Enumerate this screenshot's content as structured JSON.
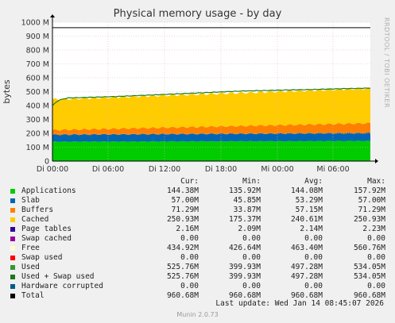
{
  "chart_data": {
    "type": "area",
    "title": "Physical memory usage - by day",
    "ylabel": "bytes",
    "side_text": "RRDTOOL / TOBI OETIKER",
    "y_ticks": [
      "0",
      "100 M",
      "200 M",
      "300 M",
      "400 M",
      "500 M",
      "600 M",
      "700 M",
      "800 M",
      "900 M",
      "1000 M"
    ],
    "ylim": [
      0,
      1000
    ],
    "x_ticks": [
      "Di 00:00",
      "Di 06:00",
      "Di 12:00",
      "Di 18:00",
      "Mi 00:00",
      "Mi 06:00"
    ],
    "grid": true,
    "series_stacked": [
      {
        "name": "Applications",
        "color": "#00cc00",
        "start": 140,
        "end": 145
      },
      {
        "name": "Slab",
        "color": "#0066b3",
        "start": 50,
        "end": 57
      },
      {
        "name": "Buffers",
        "color": "#ff8000",
        "start": 34,
        "end": 71
      },
      {
        "name": "Cached",
        "color": "#ffcc00",
        "start": 220,
        "end": 251
      }
    ],
    "total_value": 960.68,
    "used_swap_line": {
      "color": "#1a7a1a",
      "points": [
        [
          0,
          400
        ],
        [
          0.02,
          440
        ],
        [
          0.05,
          455
        ],
        [
          0.2,
          465
        ],
        [
          0.4,
          485
        ],
        [
          0.6,
          505
        ],
        [
          0.8,
          515
        ],
        [
          1.0,
          526
        ]
      ]
    }
  },
  "legend": {
    "headers": [
      "Cur:",
      "Min:",
      "Avg:",
      "Max:"
    ],
    "rows": [
      {
        "name": "Applications",
        "color": "#00cc00",
        "cur": "144.38M",
        "min": "135.92M",
        "avg": "144.08M",
        "max": "157.92M"
      },
      {
        "name": "Slab",
        "color": "#0066b3",
        "cur": "57.00M",
        "min": "45.85M",
        "avg": "53.29M",
        "max": "57.00M"
      },
      {
        "name": "Buffers",
        "color": "#ff8000",
        "cur": "71.29M",
        "min": "33.87M",
        "avg": "57.15M",
        "max": "71.29M"
      },
      {
        "name": "Cached",
        "color": "#ffcc00",
        "cur": "250.93M",
        "min": "175.37M",
        "avg": "240.61M",
        "max": "250.93M"
      },
      {
        "name": "Page tables",
        "color": "#330099",
        "cur": "2.16M",
        "min": "2.09M",
        "avg": "2.14M",
        "max": "2.23M"
      },
      {
        "name": "Swap cached",
        "color": "#990099",
        "cur": "0.00",
        "min": "0.00",
        "avg": "0.00",
        "max": "0.00"
      },
      {
        "name": "Free",
        "color": "#ffffcc",
        "cur": "434.92M",
        "min": "426.64M",
        "avg": "463.40M",
        "max": "560.76M"
      },
      {
        "name": "Swap used",
        "color": "#ff0000",
        "cur": "0.00",
        "min": "0.00",
        "avg": "0.00",
        "max": "0.00"
      },
      {
        "name": "Used",
        "color": "#339933",
        "cur": "525.76M",
        "min": "399.93M",
        "avg": "497.28M",
        "max": "534.05M"
      },
      {
        "name": "Used + Swap used",
        "color": "#1a7a1a",
        "cur": "525.76M",
        "min": "399.93M",
        "avg": "497.28M",
        "max": "534.05M"
      },
      {
        "name": "Hardware corrupted",
        "color": "#005d8a",
        "cur": "0.00",
        "min": "0.00",
        "avg": "0.00",
        "max": "0.00"
      },
      {
        "name": "Total",
        "color": "#000000",
        "cur": "960.68M",
        "min": "960.68M",
        "avg": "960.68M",
        "max": "960.68M"
      }
    ]
  },
  "last_update": "Last update: Wed Jan 14 08:45:07 2026",
  "munin_version": "Munin 2.0.73"
}
